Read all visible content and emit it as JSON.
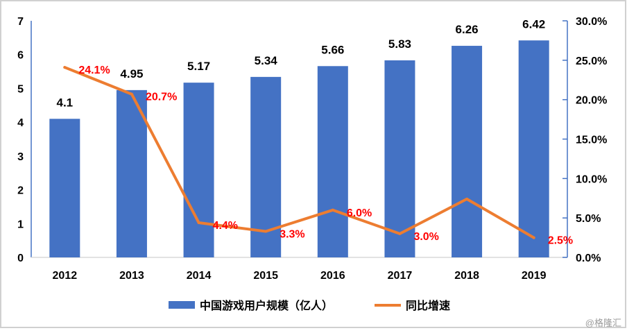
{
  "chart_data": {
    "type": "bar+line",
    "categories": [
      "2012",
      "2013",
      "2014",
      "2015",
      "2016",
      "2017",
      "2018",
      "2019"
    ],
    "series": [
      {
        "name": "中国游戏用户规模（亿人）",
        "type": "bar",
        "axis": "left",
        "values": [
          4.1,
          4.95,
          5.17,
          5.34,
          5.66,
          5.83,
          6.26,
          6.42
        ],
        "labels": [
          "4.1",
          "4.95",
          "5.17",
          "5.34",
          "5.66",
          "5.83",
          "6.26",
          "6.42"
        ],
        "color": "#4472C4"
      },
      {
        "name": "同比增速",
        "type": "line",
        "axis": "right",
        "values": [
          24.1,
          20.7,
          4.4,
          3.3,
          6.0,
          3.0,
          7.4,
          2.5
        ],
        "labels": [
          "24.1%",
          "20.7%",
          "4.4%",
          "3.3%",
          "6.0%",
          "3.0%",
          "",
          "2.5%"
        ],
        "color": "#ED7D31",
        "label_color": "#FF0000"
      }
    ],
    "y_left": {
      "range": [
        0,
        7
      ],
      "ticks": [
        "0",
        "1",
        "2",
        "3",
        "4",
        "5",
        "6",
        "7"
      ]
    },
    "y_right": {
      "range": [
        0,
        30
      ],
      "ticks": [
        "0.0%",
        "5.0%",
        "10.0%",
        "15.0%",
        "20.0%",
        "25.0%",
        "30.0%"
      ]
    },
    "grid": false,
    "legend": "bottom"
  },
  "watermark": "@格隆汇"
}
